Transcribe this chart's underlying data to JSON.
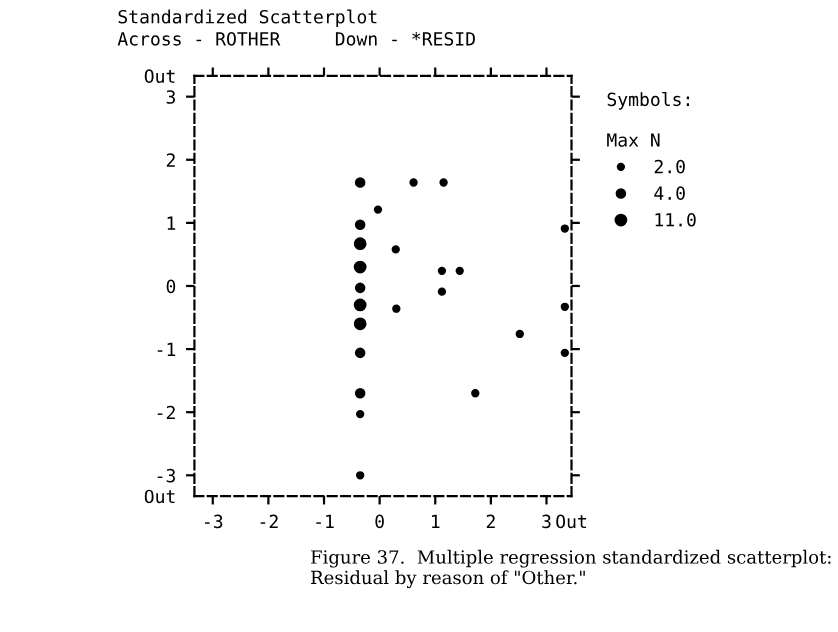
{
  "chart_data": {
    "type": "scatter",
    "title": "Standardized Scatterplot",
    "subtitle": "Across - ROTHER     Down - *RESID",
    "legend_title": "Symbols:\n\nMax N",
    "legend": "right",
    "grid": false,
    "marker": "circle",
    "xlim": [
      -3.33,
      3.45
    ],
    "xticks": [
      -3,
      -2,
      -1,
      0,
      1,
      2,
      3,
      {
        "value": 3.45,
        "label": "Out"
      }
    ],
    "ylim": [
      -3.33,
      3.33
    ],
    "yticks": [
      {
        "value": -3.33,
        "label": "Out"
      },
      -3,
      -2,
      -1,
      0,
      1,
      2,
      3,
      {
        "value": 3.33,
        "label": "Out"
      }
    ],
    "series": [
      {
        "name": "2.0",
        "color": "#000000",
        "x": [
          -0.35,
          -0.35,
          -0.03,
          0.61,
          1.15,
          0.29,
          1.12,
          1.44,
          1.12,
          0.3,
          2.52,
          1.72,
          3.33,
          3.33,
          3.33
        ],
        "values": [
          -2.03,
          -3.0,
          1.21,
          1.64,
          1.64,
          0.58,
          0.24,
          0.24,
          -0.09,
          -0.36,
          -0.76,
          -1.7,
          0.91,
          -0.33,
          -1.06
        ]
      },
      {
        "name": "4.0",
        "color": "#000000",
        "x": [
          -0.35,
          -0.35,
          -0.35,
          -0.35,
          -0.35
        ],
        "values": [
          1.64,
          0.97,
          -0.03,
          -1.06,
          -1.7
        ]
      },
      {
        "name": "11.0",
        "color": "#000000",
        "x": [
          -0.35,
          -0.35,
          -0.35,
          -0.35
        ],
        "values": [
          0.67,
          0.3,
          -0.3,
          -0.6
        ]
      }
    ],
    "annotations": [
      "Figure 37.  Multiple regression standardized scatterplot:\nResidual by reason of \"Other.\""
    ]
  }
}
